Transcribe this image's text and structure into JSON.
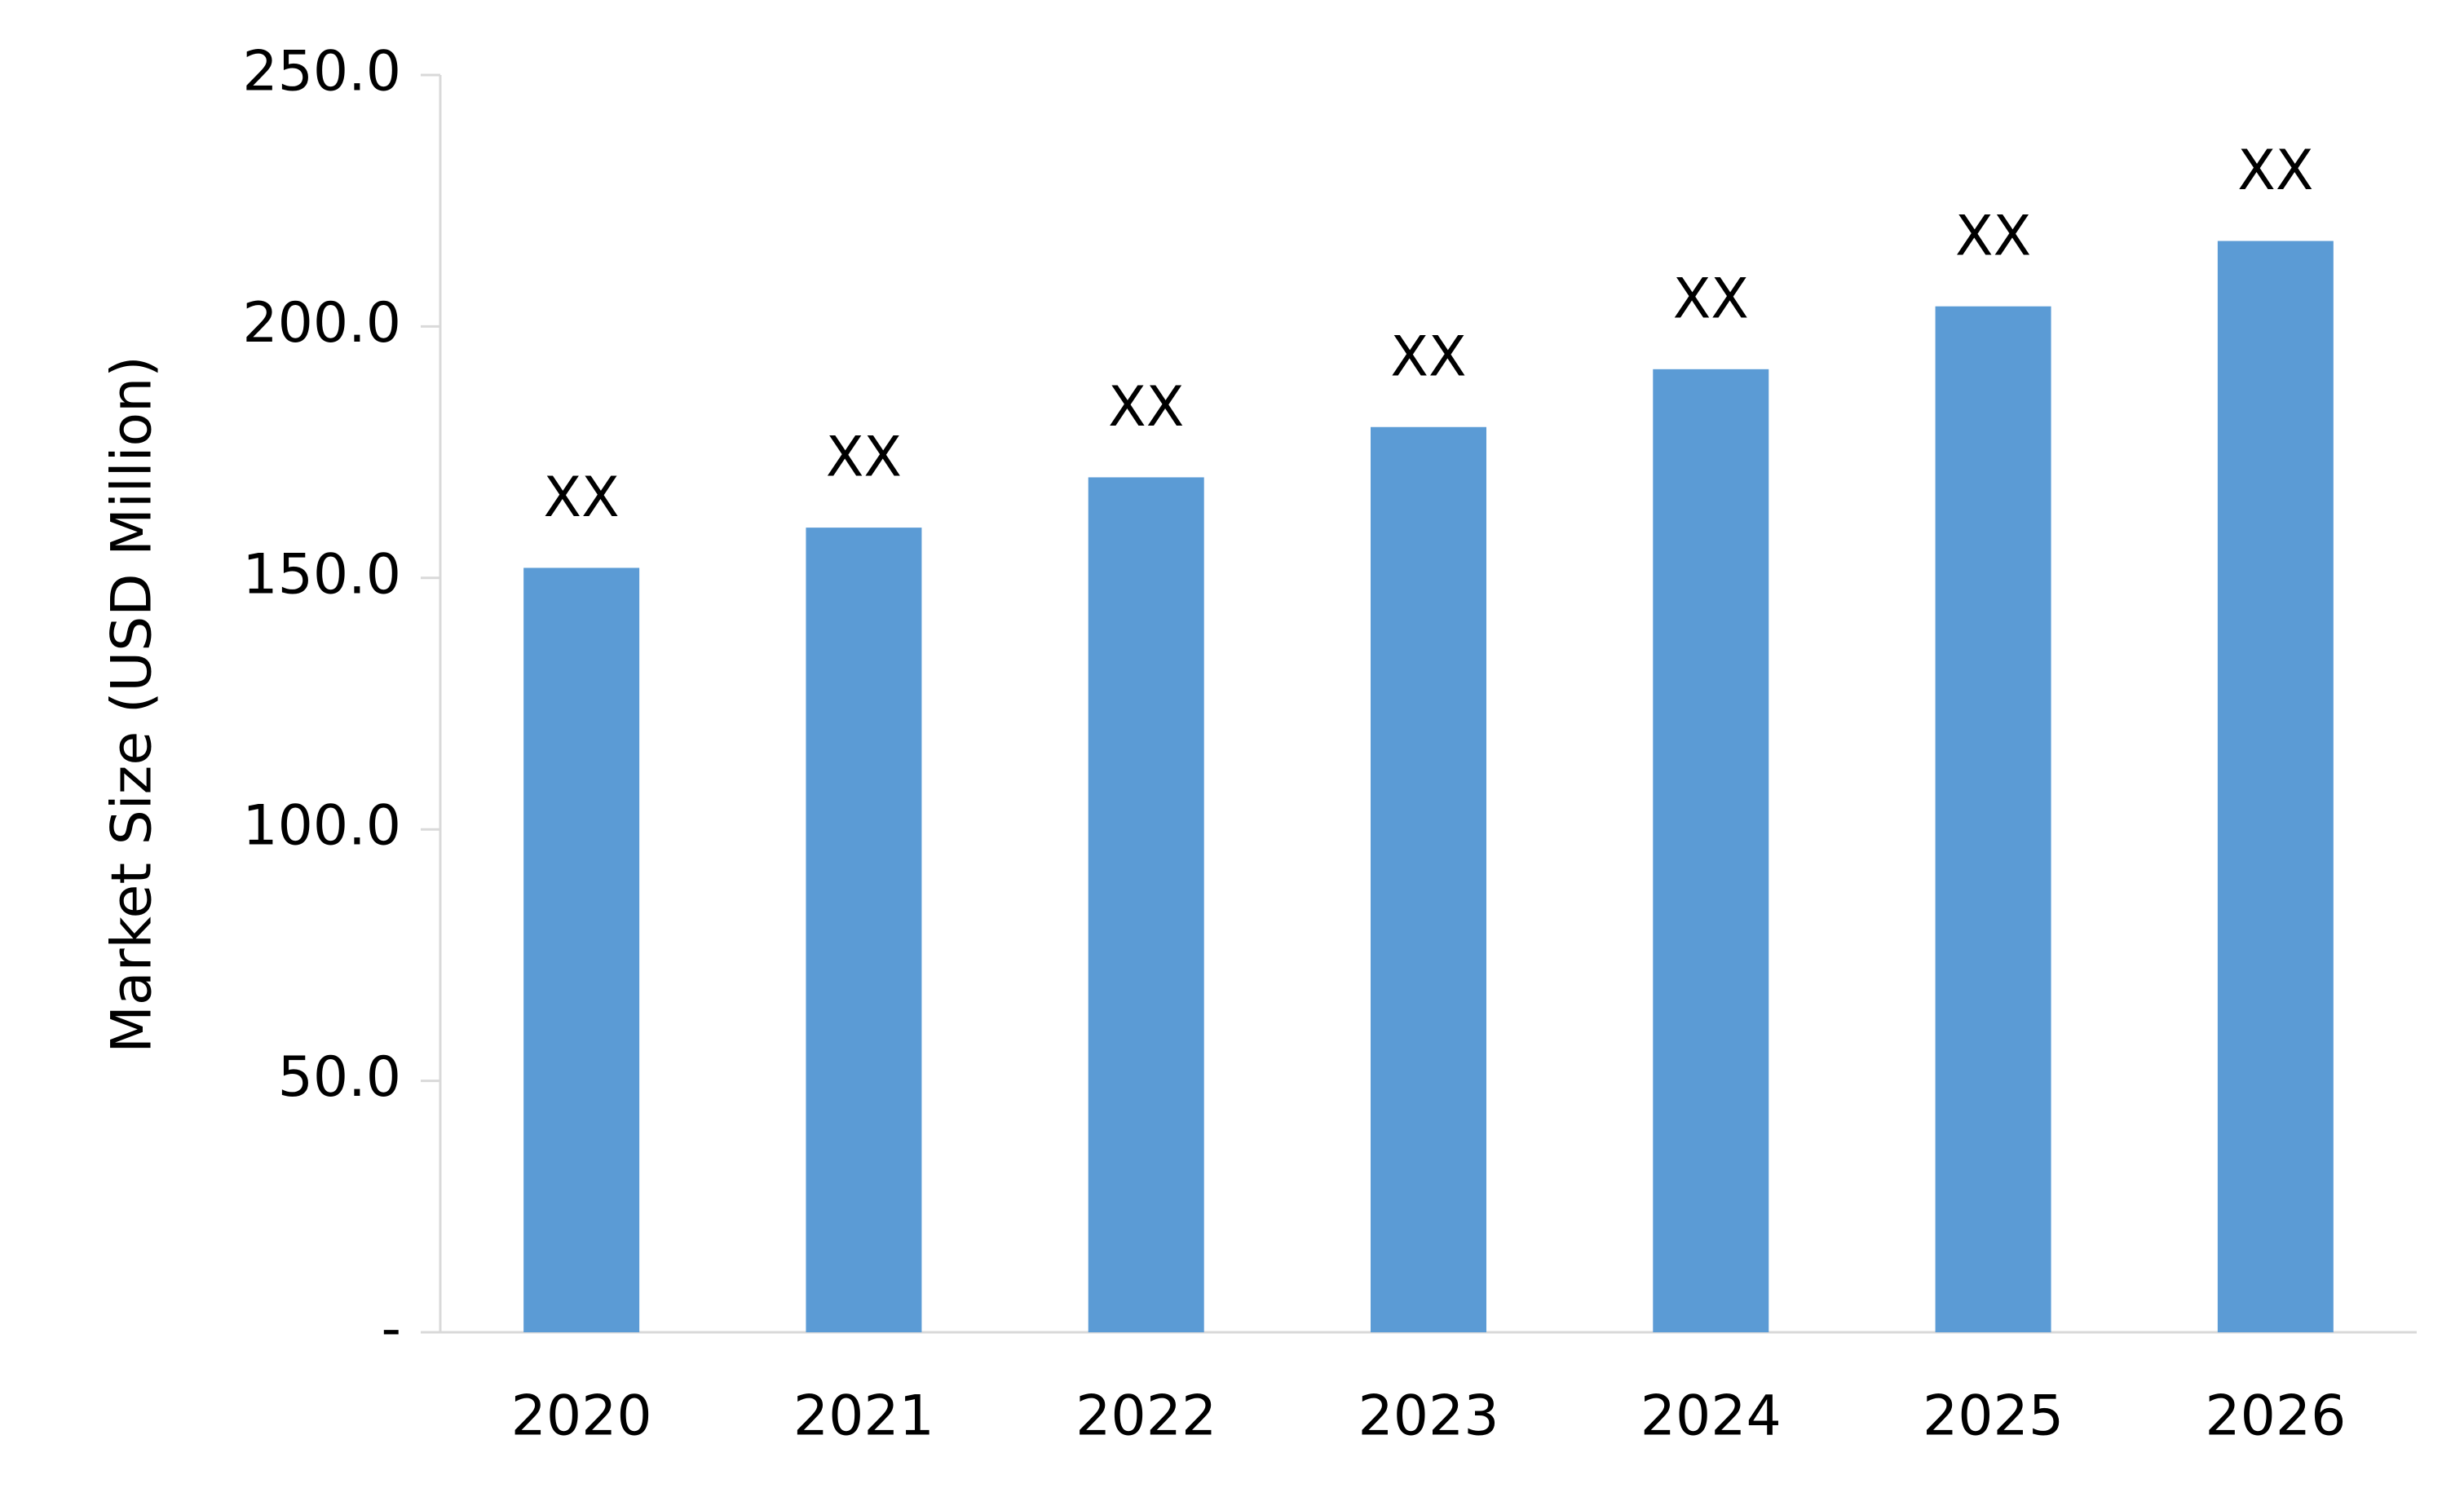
{
  "chart_data": {
    "type": "bar",
    "y_axis_label": "Market Size (USD Million)",
    "categories": [
      "2020",
      "2021",
      "2022",
      "2023",
      "2024",
      "2025",
      "2026"
    ],
    "values": [
      152,
      160,
      170,
      180,
      191.5,
      204,
      217
    ],
    "value_labels": [
      "XX",
      "XX",
      "XX",
      "XX",
      "XX",
      "XX",
      "XX"
    ],
    "color": "#5b9bd5",
    "ylim": [
      0,
      250
    ],
    "yticks": [
      {
        "value": 0,
        "label": "-"
      },
      {
        "value": 50,
        "label": "50.0"
      },
      {
        "value": 100,
        "label": "100.0"
      },
      {
        "value": 150,
        "label": "150.0"
      },
      {
        "value": 200,
        "label": "200.0"
      },
      {
        "value": 250,
        "label": "250.0"
      }
    ],
    "grid": false
  }
}
